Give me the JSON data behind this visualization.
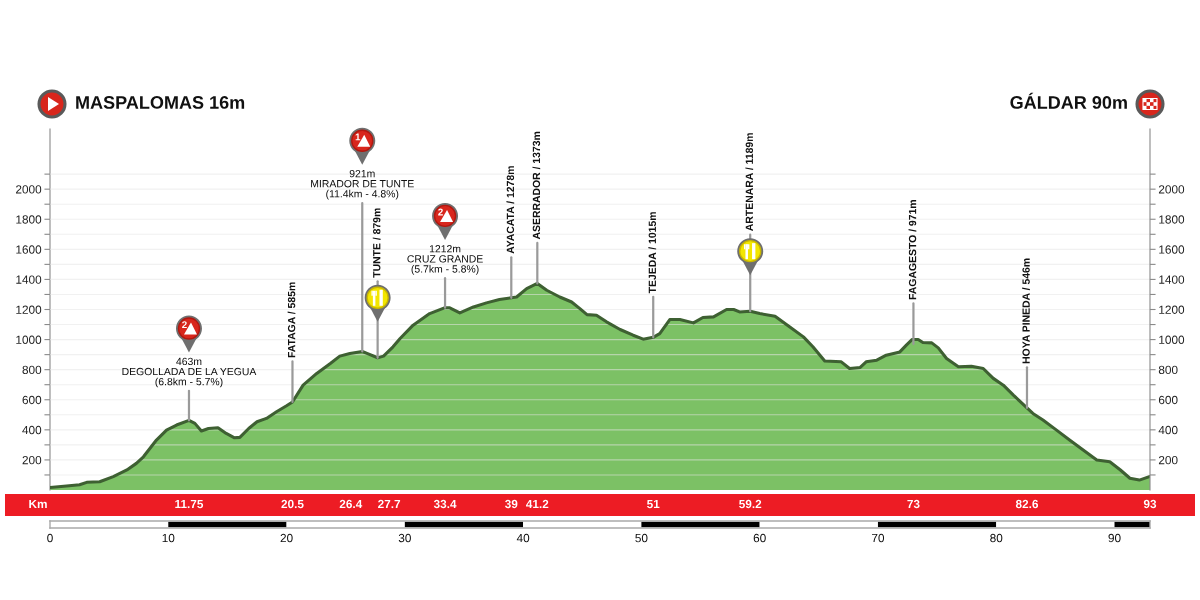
{
  "chart_data": {
    "type": "area",
    "color": "#7cc165",
    "x": [
      0,
      1.4,
      2.5,
      3.1,
      4.2,
      5.35,
      6.5,
      7.3,
      7.9,
      9.0,
      9.85,
      10.7,
      11.75,
      12.25,
      12.8,
      13.4,
      14.2,
      14.9,
      15.6,
      16.05,
      16.8,
      17.5,
      18.3,
      19.15,
      20.0,
      20.5,
      21.4,
      22.55,
      23.7,
      24.5,
      25.35,
      26.4,
      26.8,
      27.7,
      28.2,
      29.0,
      29.6,
      30.7,
      32.1,
      33.4,
      33.8,
      34.65,
      35.8,
      36.9,
      38.0,
      39.0,
      39.45,
      40.3,
      41.2,
      42.0,
      43.1,
      44.1,
      44.8,
      45.4,
      46.2,
      47.05,
      48.2,
      49.3,
      50.15,
      51.0,
      51.55,
      52.4,
      53.25,
      54.4,
      55.2,
      56.1,
      57.2,
      57.8,
      58.3,
      59.2,
      60.0,
      61.3,
      62.55,
      63.7,
      64.5,
      65.5,
      66.9,
      67.6,
      68.5,
      69.0,
      69.9,
      70.7,
      71.85,
      72.4,
      72.9,
      73.4,
      73.8,
      74.55,
      75.1,
      75.8,
      76.8,
      77.9,
      78.9,
      79.75,
      80.6,
      81.45,
      82.6,
      83.1,
      83.95,
      85.1,
      86.2,
      87.35,
      88.5,
      89.6,
      90.5,
      91.3,
      92.1,
      93
    ],
    "values": [
      16,
      27,
      35,
      51,
      55,
      89,
      133,
      177,
      221,
      332,
      398,
      432,
      463,
      443,
      392,
      409,
      414,
      376,
      347,
      350,
      409,
      454,
      476,
      520,
      560,
      585,
      697,
      775,
      841,
      890,
      908,
      921,
      908,
      879,
      890,
      952,
      1007,
      1096,
      1173,
      1212,
      1211,
      1177,
      1217,
      1244,
      1266,
      1278,
      1283,
      1339,
      1373,
      1328,
      1283,
      1250,
      1206,
      1166,
      1162,
      1118,
      1067,
      1029,
      1003,
      1015,
      1040,
      1133,
      1133,
      1111,
      1147,
      1151,
      1200,
      1200,
      1184,
      1189,
      1173,
      1155,
      1084,
      1018,
      952,
      857,
      852,
      808,
      815,
      852,
      863,
      896,
      918,
      963,
      1001,
      1001,
      981,
      978,
      945,
      874,
      819,
      823,
      808,
      742,
      697,
      631,
      546,
      509,
      465,
      398,
      332,
      266,
      199,
      188,
      133,
      78,
      66,
      90
    ],
    "xlim": [
      0,
      93
    ],
    "xticks": [
      0,
      10,
      20,
      30,
      40,
      50,
      60,
      70,
      80,
      90
    ],
    "ylim": [
      0,
      2400
    ],
    "yticks": [
      {
        "value": 100,
        "label": null
      },
      200,
      {
        "value": 300,
        "label": null
      },
      400,
      {
        "value": 500,
        "label": null
      },
      600,
      {
        "value": 700,
        "label": null
      },
      800,
      {
        "value": 900,
        "label": null
      },
      1000,
      {
        "value": 1100,
        "label": null
      },
      1200,
      {
        "value": 1300,
        "label": null
      },
      1400,
      {
        "value": 1500,
        "label": null
      },
      1600,
      {
        "value": 1700,
        "label": null
      },
      1800,
      {
        "value": 1900,
        "label": null
      },
      2000,
      {
        "value": 2100,
        "label": null
      }
    ],
    "y2lim": [
      0,
      2400
    ],
    "y2ticks": [
      {
        "value": 100,
        "label": null
      },
      200,
      {
        "value": 300,
        "label": null
      },
      400,
      {
        "value": 500,
        "label": null
      },
      600,
      {
        "value": 700,
        "label": null
      },
      800,
      {
        "value": 900,
        "label": null
      },
      1000,
      {
        "value": 1100,
        "label": null
      },
      1200,
      {
        "value": 1300,
        "label": null
      },
      1400,
      {
        "value": 1500,
        "label": null
      },
      1600,
      {
        "value": 1700,
        "label": null
      },
      1800,
      {
        "value": 1900,
        "label": null
      },
      2000,
      {
        "value": 2100,
        "label": null
      }
    ],
    "grid": "y",
    "annotations": [
      "MASPALOMAS 16m",
      "GÁLDAR 90m",
      {
        "text": "463m\nDEGOLLADA DE LA YEGUA\n(6.8km - 5.7%)",
        "x": 11.75,
        "y": 463
      },
      "2",
      {
        "text": "FATAGA / 585m",
        "x": 20.5,
        "y": 585
      },
      {
        "text": "921m\nMIRADOR DE TUNTE\n(11.4km - 4.8%)",
        "x": 26.4,
        "y": 921
      },
      "1",
      {
        "text": "TUNTE / 879m",
        "x": 27.7,
        "y": 879
      },
      {
        "text": "1212m\nCRUZ GRANDE\n(5.7km - 5.8%)",
        "x": 33.4,
        "y": 1212
      },
      "2",
      {
        "text": "AYACATA / 1278m",
        "x": 39,
        "y": 1278
      },
      {
        "text": "ASERRADOR / 1373m",
        "x": 41.2,
        "y": 1373
      },
      {
        "text": "TEJEDA / 1015m",
        "x": 51,
        "y": 1015
      },
      {
        "text": "ARTENARA / 1189m",
        "x": 59.2,
        "y": 1189
      },
      {
        "text": "FAGAGESTO / 971m",
        "x": 73,
        "y": 971
      },
      {
        "text": "HOYA PINEDA / 546m",
        "x": 82.6,
        "y": 546
      },
      "Km",
      {
        "text": "11.75",
        "x": 11.75,
        "y": 0
      },
      {
        "text": "20.5",
        "x": 20.5,
        "y": 0
      },
      {
        "text": "26.4",
        "x": 26.4,
        "y": 0
      },
      {
        "text": "27.7",
        "x": 27.7,
        "y": 0
      },
      {
        "text": "33.4",
        "x": 33.4,
        "y": 0
      },
      {
        "text": "39",
        "x": 39,
        "y": 0
      },
      {
        "text": "41.2",
        "x": 41.2,
        "y": 0
      },
      {
        "text": "51",
        "x": 51,
        "y": 0
      },
      {
        "text": "59.2",
        "x": 59.2,
        "y": 0
      },
      {
        "text": "73",
        "x": 73,
        "y": 0
      },
      {
        "text": "82.6",
        "x": 82.6,
        "y": 0
      },
      {
        "text": "93",
        "x": 93,
        "y": 0
      }
    ]
  }
}
